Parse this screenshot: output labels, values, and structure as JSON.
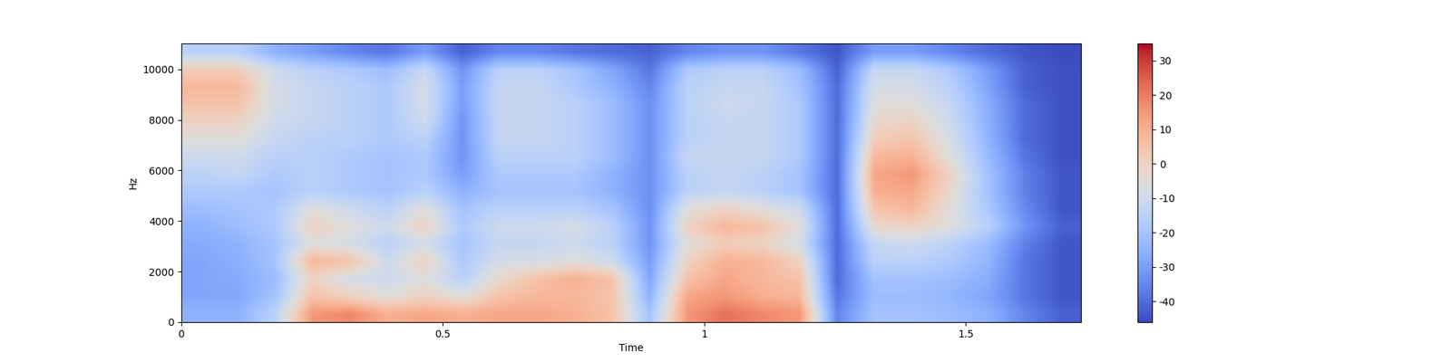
{
  "chart_data": {
    "type": "heatmap",
    "x_label": "Time",
    "y_label": "Hz",
    "color": "coolwarm",
    "xlim": [
      0,
      1.72
    ],
    "ylim": [
      0,
      11025
    ],
    "xticks": [
      0,
      0.5,
      1,
      1.5
    ],
    "yticks": [
      0,
      2000,
      4000,
      6000,
      8000,
      10000
    ],
    "color_range": [
      -46,
      35
    ],
    "color_ticks": [
      -40,
      -30,
      -20,
      -10,
      0,
      10,
      20,
      30
    ],
    "grid": false,
    "cells": [
      [
        -25,
        -25,
        -15,
        15,
        18,
        10,
        12,
        10,
        12,
        12,
        10,
        5,
        -20,
        15,
        22,
        18,
        15,
        -35,
        -20,
        -20,
        -22,
        -25,
        -35,
        -42
      ],
      [
        -28,
        -28,
        -20,
        5,
        0,
        -5,
        0,
        -5,
        5,
        8,
        8,
        5,
        -25,
        12,
        15,
        10,
        8,
        -38,
        -22,
        -22,
        -24,
        -28,
        -38,
        -44
      ],
      [
        -28,
        -27,
        -22,
        0,
        -8,
        -10,
        -5,
        -15,
        -2,
        5,
        10,
        5,
        -28,
        5,
        12,
        8,
        5,
        -40,
        -20,
        -20,
        -22,
        -26,
        -38,
        -44
      ],
      [
        -28,
        -26,
        -20,
        8,
        5,
        -10,
        0,
        -18,
        -8,
        -8,
        -5,
        -10,
        -30,
        0,
        10,
        8,
        0,
        -40,
        -15,
        -15,
        -18,
        -24,
        -38,
        -44
      ],
      [
        -27,
        -25,
        -20,
        -5,
        -8,
        -15,
        -8,
        -20,
        -12,
        -12,
        -10,
        -15,
        -32,
        -5,
        2,
        0,
        -8,
        -40,
        -12,
        -10,
        -15,
        -22,
        -36,
        -44
      ],
      [
        -25,
        -22,
        -18,
        0,
        -5,
        -10,
        0,
        -18,
        -10,
        -10,
        -8,
        -15,
        -32,
        0,
        8,
        5,
        -5,
        -40,
        -2,
        0,
        -5,
        -15,
        -32,
        -42
      ],
      [
        -22,
        -20,
        -18,
        -5,
        -10,
        -15,
        -5,
        -20,
        -15,
        -15,
        -15,
        -20,
        -33,
        -5,
        0,
        -5,
        -10,
        -40,
        5,
        8,
        -5,
        -18,
        -34,
        -44
      ],
      [
        -18,
        -18,
        -20,
        -15,
        -18,
        -20,
        -15,
        -25,
        -20,
        -20,
        -20,
        -25,
        -33,
        -15,
        -12,
        -15,
        -20,
        -40,
        10,
        12,
        -2,
        -20,
        -36,
        -44
      ],
      [
        -15,
        -12,
        -18,
        -15,
        -18,
        -20,
        -18,
        -30,
        -18,
        -18,
        -18,
        -25,
        -33,
        -15,
        -12,
        -15,
        -20,
        -40,
        12,
        15,
        0,
        -20,
        -36,
        -44
      ],
      [
        -10,
        -10,
        -15,
        -15,
        -18,
        -20,
        -18,
        -32,
        -15,
        -15,
        -15,
        -22,
        -33,
        -12,
        -12,
        -12,
        -18,
        -40,
        8,
        10,
        -5,
        -22,
        -38,
        -45
      ],
      [
        -5,
        -5,
        -12,
        -15,
        -15,
        -18,
        -15,
        -32,
        -12,
        -12,
        -15,
        -22,
        -33,
        -15,
        -12,
        -12,
        -18,
        -40,
        2,
        5,
        -8,
        -24,
        -40,
        -45
      ],
      [
        0,
        0,
        -10,
        -12,
        -15,
        -18,
        -10,
        -32,
        -12,
        -12,
        -15,
        -22,
        -33,
        -15,
        -12,
        -12,
        -18,
        -40,
        -2,
        0,
        -10,
        -25,
        -40,
        -45
      ],
      [
        5,
        5,
        -8,
        -12,
        -15,
        -18,
        -8,
        -30,
        -12,
        -12,
        -15,
        -22,
        -33,
        -15,
        -10,
        -12,
        -18,
        -40,
        -5,
        -5,
        -12,
        -26,
        -40,
        -45
      ],
      [
        8,
        8,
        -8,
        -12,
        -15,
        -18,
        -8,
        -30,
        -12,
        -12,
        -18,
        -25,
        -35,
        -15,
        -12,
        -12,
        -20,
        -40,
        -8,
        -8,
        -15,
        -28,
        -42,
        -45
      ],
      [
        2,
        2,
        -10,
        -15,
        -18,
        -22,
        -12,
        -32,
        -15,
        -15,
        -20,
        -28,
        -38,
        -18,
        -15,
        -15,
        -22,
        -42,
        -12,
        -12,
        -18,
        -30,
        -42,
        -45
      ],
      [
        -15,
        -15,
        -25,
        -30,
        -35,
        -38,
        -30,
        -42,
        -35,
        -35,
        -38,
        -40,
        -42,
        -35,
        -32,
        -32,
        -38,
        -44,
        -30,
        -30,
        -35,
        -40,
        -44,
        -46
      ]
    ]
  }
}
